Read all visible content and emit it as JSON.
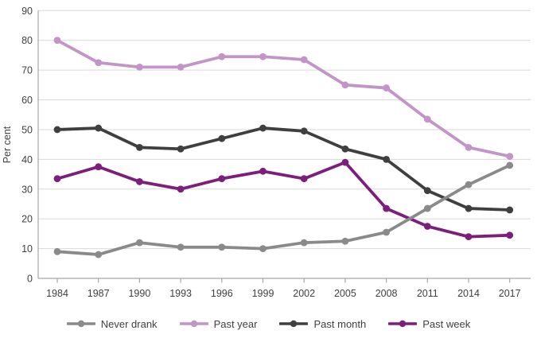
{
  "chart_data": {
    "type": "line",
    "title": "",
    "xlabel": "",
    "ylabel": "Per cent",
    "ylim": [
      0,
      90
    ],
    "ytick_interval": 10,
    "grid": true,
    "legend_position": "bottom",
    "categories": [
      "1984",
      "1987",
      "1990",
      "1993",
      "1996",
      "1999",
      "2002",
      "2005",
      "2008",
      "2011",
      "2014",
      "2017"
    ],
    "series": [
      {
        "name": "Never drank",
        "color": "#8a8a8a",
        "values": [
          9,
          8,
          12,
          10.5,
          10.5,
          10,
          12,
          12.5,
          15.5,
          23.5,
          31.5,
          38
        ]
      },
      {
        "name": "Past year",
        "color": "#c394c8",
        "values": [
          80,
          72.5,
          71,
          71,
          74.5,
          74.5,
          73.5,
          65,
          64,
          53.5,
          44,
          41
        ]
      },
      {
        "name": "Past month",
        "color": "#3f3f3f",
        "values": [
          50,
          50.5,
          44,
          43.5,
          47,
          50.5,
          49.5,
          43.5,
          40,
          29.5,
          23.5,
          23
        ]
      },
      {
        "name": "Past week",
        "color": "#7d1e7d",
        "values": [
          33.5,
          37.5,
          32.5,
          30,
          33.5,
          36,
          33.5,
          39,
          23.5,
          17.5,
          14,
          14.5
        ]
      }
    ]
  },
  "style": {
    "gridline_color": "#d9d9d9",
    "axis_color": "#a6a6a6",
    "text_color": "#404040"
  }
}
